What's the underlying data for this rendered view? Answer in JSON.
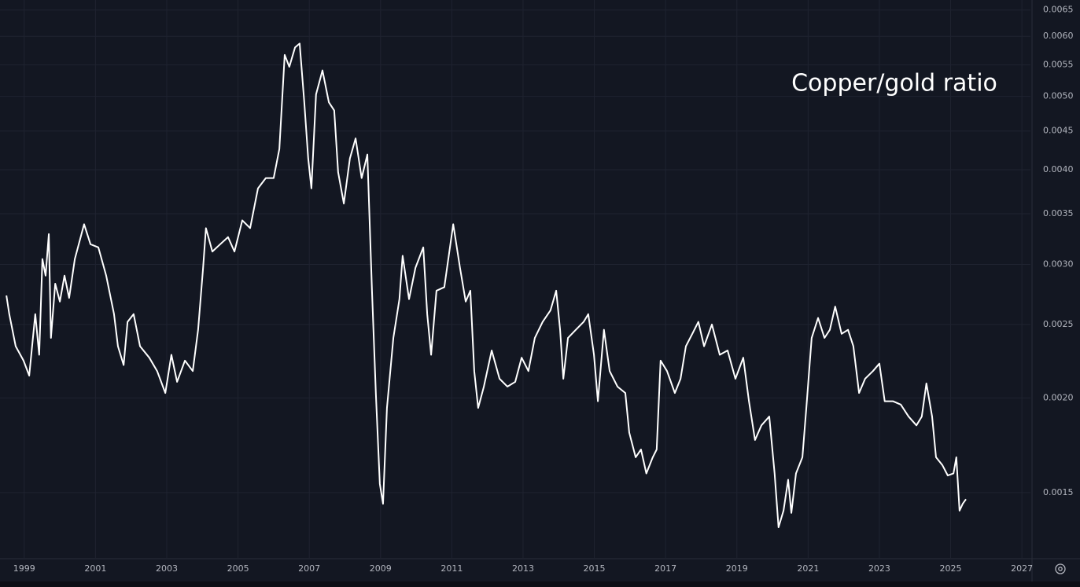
{
  "chart_data": {
    "type": "line",
    "annotation": "Copper/gold ratio",
    "log_y": true,
    "grid": true,
    "background": "#131722",
    "grid_color": "#1f2330",
    "xlim": [
      1998.32,
      2027.24
    ],
    "ylim": [
      0.00123,
      0.0067
    ],
    "xticks": [
      1999,
      2001,
      2003,
      2005,
      2007,
      2009,
      2011,
      2013,
      2015,
      2017,
      2019,
      2021,
      2023,
      2025,
      2027
    ],
    "yticks": [
      0.0015,
      {
        "value": 0.002,
        "label": "0.0020"
      },
      0.0025,
      {
        "value": 0.003,
        "label": "0.0030"
      },
      0.0035,
      {
        "value": 0.004,
        "label": "0.0040"
      },
      0.0045,
      {
        "value": 0.005,
        "label": "0.0050"
      },
      0.0055,
      {
        "value": 0.006,
        "label": "0.0060"
      },
      0.0065
    ],
    "series": [
      {
        "color": "#ffffff",
        "x": [
          1998.5,
          1998.58,
          1998.76,
          1998.98,
          1999.14,
          1999.31,
          1999.42,
          1999.51,
          1999.6,
          1999.69,
          1999.75,
          1999.87,
          2000.0,
          2000.13,
          2000.26,
          2000.42,
          2000.68,
          2000.86,
          2001.08,
          2001.3,
          2001.52,
          2001.63,
          2001.79,
          2001.9,
          2002.07,
          2002.25,
          2002.51,
          2002.73,
          2002.96,
          2003.13,
          2003.29,
          2003.51,
          2003.73,
          2003.88,
          2004.02,
          2004.1,
          2004.28,
          2004.5,
          2004.72,
          2004.9,
          2005.12,
          2005.34,
          2005.56,
          2005.78,
          2006.0,
          2006.16,
          2006.31,
          2006.44,
          2006.6,
          2006.73,
          2006.86,
          2006.97,
          2007.06,
          2007.19,
          2007.37,
          2007.55,
          2007.7,
          2007.81,
          2007.97,
          2008.14,
          2008.3,
          2008.47,
          2008.63,
          2008.76,
          2008.87,
          2008.98,
          2009.07,
          2009.18,
          2009.36,
          2009.53,
          2009.62,
          2009.8,
          2009.98,
          2010.2,
          2010.31,
          2010.42,
          2010.57,
          2010.79,
          2011.04,
          2011.23,
          2011.39,
          2011.52,
          2011.63,
          2011.74,
          2011.9,
          2012.12,
          2012.34,
          2012.56,
          2012.78,
          2012.96,
          2013.15,
          2013.33,
          2013.55,
          2013.77,
          2013.93,
          2014.04,
          2014.13,
          2014.26,
          2014.48,
          2014.7,
          2014.83,
          2014.99,
          2015.1,
          2015.27,
          2015.43,
          2015.65,
          2015.87,
          2015.98,
          2016.16,
          2016.31,
          2016.46,
          2016.64,
          2016.75,
          2016.86,
          2017.04,
          2017.26,
          2017.42,
          2017.57,
          2017.75,
          2017.92,
          2018.08,
          2018.3,
          2018.52,
          2018.74,
          2018.96,
          2019.18,
          2019.34,
          2019.51,
          2019.69,
          2019.91,
          2020.06,
          2020.17,
          2020.31,
          2020.44,
          2020.53,
          2020.66,
          2020.84,
          2020.95,
          2021.1,
          2021.28,
          2021.46,
          2021.61,
          2021.76,
          2021.94,
          2022.12,
          2022.27,
          2022.43,
          2022.6,
          2022.82,
          2023.0,
          2023.15,
          2023.38,
          2023.6,
          2023.82,
          2024.04,
          2024.19,
          2024.32,
          2024.48,
          2024.59,
          2024.77,
          2024.92,
          2025.08,
          2025.16,
          2025.25,
          2025.34,
          2025.43
        ],
        "values": [
          0.00273,
          0.00258,
          0.00234,
          0.00224,
          0.00214,
          0.00258,
          0.00228,
          0.00305,
          0.0029,
          0.00329,
          0.0024,
          0.00283,
          0.00268,
          0.0029,
          0.00271,
          0.00305,
          0.00339,
          0.00319,
          0.00316,
          0.0029,
          0.00258,
          0.00234,
          0.00221,
          0.00252,
          0.00258,
          0.00234,
          0.00226,
          0.00217,
          0.00203,
          0.00228,
          0.0021,
          0.00224,
          0.00217,
          0.00246,
          0.00297,
          0.00335,
          0.00312,
          0.00319,
          0.00326,
          0.00312,
          0.00343,
          0.00335,
          0.00378,
          0.0039,
          0.0039,
          0.00426,
          0.00567,
          0.00547,
          0.0058,
          0.00587,
          0.00491,
          0.00414,
          0.00378,
          0.00503,
          0.00541,
          0.00491,
          0.00479,
          0.00397,
          0.00361,
          0.00414,
          0.0044,
          0.0039,
          0.00419,
          0.00277,
          0.00202,
          0.00154,
          0.00145,
          0.00194,
          0.0024,
          0.0027,
          0.00308,
          0.0027,
          0.00297,
          0.00316,
          0.00258,
          0.00228,
          0.00277,
          0.0028,
          0.00339,
          0.00297,
          0.00268,
          0.00277,
          0.00217,
          0.00194,
          0.00207,
          0.00231,
          0.00212,
          0.00207,
          0.0021,
          0.00226,
          0.00217,
          0.0024,
          0.00252,
          0.00261,
          0.00277,
          0.00246,
          0.00212,
          0.0024,
          0.00246,
          0.00252,
          0.00258,
          0.00228,
          0.00198,
          0.00246,
          0.00217,
          0.00207,
          0.00203,
          0.0018,
          0.00167,
          0.00171,
          0.00159,
          0.00167,
          0.00171,
          0.00224,
          0.00217,
          0.00203,
          0.00212,
          0.00234,
          0.00243,
          0.00252,
          0.00234,
          0.0025,
          0.00228,
          0.00231,
          0.00212,
          0.00226,
          0.00198,
          0.00176,
          0.00184,
          0.00189,
          0.00159,
          0.00135,
          0.00142,
          0.00156,
          0.00141,
          0.00159,
          0.00167,
          0.00194,
          0.0024,
          0.00255,
          0.0024,
          0.00246,
          0.00264,
          0.00243,
          0.00246,
          0.00234,
          0.00203,
          0.00212,
          0.00217,
          0.00222,
          0.00198,
          0.00198,
          0.00196,
          0.00189,
          0.00184,
          0.00189,
          0.00209,
          0.00189,
          0.00167,
          0.00163,
          0.00158,
          0.00159,
          0.00167,
          0.00142,
          0.00145,
          0.00147
        ]
      }
    ]
  }
}
